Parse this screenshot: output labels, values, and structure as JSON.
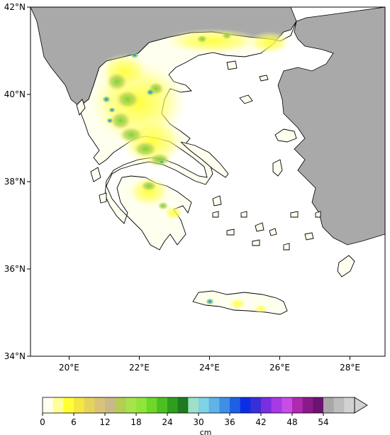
{
  "map": {
    "y_ticks": [
      {
        "value": 42,
        "label": "42°N"
      },
      {
        "value": 40,
        "label": "40°N"
      },
      {
        "value": 38,
        "label": "38°N"
      },
      {
        "value": 36,
        "label": "36°N"
      },
      {
        "value": 34,
        "label": "34°N"
      }
    ],
    "x_ticks": [
      {
        "value": 20,
        "label": "20°E"
      },
      {
        "value": 22,
        "label": "22°E"
      },
      {
        "value": 24,
        "label": "24°E"
      },
      {
        "value": 26,
        "label": "26°E"
      },
      {
        "value": 28,
        "label": "28°E"
      }
    ],
    "lon_range": [
      18.9,
      29.0
    ],
    "lat_range": [
      34.0,
      42.0
    ],
    "sea_color": "#ffffff",
    "foreign_land_color": "#a9a9a9",
    "coastline_color": "#000000"
  },
  "colorbar": {
    "unit": "cm",
    "range": [
      0,
      60
    ],
    "ticks": [
      {
        "value": 0,
        "label": "0"
      },
      {
        "value": 6,
        "label": "6"
      },
      {
        "value": 12,
        "label": "12"
      },
      {
        "value": 18,
        "label": "18"
      },
      {
        "value": 24,
        "label": "24"
      },
      {
        "value": 30,
        "label": "30"
      },
      {
        "value": 36,
        "label": "36"
      },
      {
        "value": 42,
        "label": "42"
      },
      {
        "value": 48,
        "label": "48"
      },
      {
        "value": 54,
        "label": "54"
      }
    ],
    "extend": "max",
    "colors": [
      "#fffff0",
      "#ffff99",
      "#ffff33",
      "#f5e642",
      "#e6d35c",
      "#d9c27a",
      "#c8b98a",
      "#b5cc55",
      "#a6e34d",
      "#8fe639",
      "#6fd62a",
      "#4cbf22",
      "#2e9e1f",
      "#1f7a1f",
      "#9ee0c8",
      "#7fd1e6",
      "#5fb3e6",
      "#3f8fe6",
      "#1f5fe6",
      "#0a2ee6",
      "#3a2ed6",
      "#7a2ee0",
      "#a63ae6",
      "#c84ce6",
      "#b02ab0",
      "#8a1a8a",
      "#6a1470",
      "#a8a8a8",
      "#bdbdbd",
      "#d2d2d2"
    ]
  },
  "chart_data": {
    "type": "heatmap",
    "xlabel": "",
    "ylabel": "",
    "x_axis_ticks": [
      "20°E",
      "22°E",
      "24°E",
      "26°E",
      "28°E"
    ],
    "y_axis_ticks": [
      "42°N",
      "40°N",
      "38°N",
      "36°N",
      "34°N"
    ],
    "xlim": [
      18.9,
      29.0
    ],
    "ylim": [
      34.0,
      42.0
    ],
    "colorbar_unit": "cm",
    "colorbar_range": [
      0,
      60
    ],
    "hotspots": [
      {
        "lon": 21.1,
        "lat": 40.3,
        "value": 36
      },
      {
        "lon": 21.3,
        "lat": 39.9,
        "value": 36
      },
      {
        "lon": 21.2,
        "lat": 39.6,
        "value": 33
      },
      {
        "lon": 21.5,
        "lat": 39.2,
        "value": 24
      },
      {
        "lon": 22.0,
        "lat": 38.9,
        "value": 20
      },
      {
        "lon": 22.3,
        "lat": 38.7,
        "value": 22
      },
      {
        "lon": 22.2,
        "lat": 40.1,
        "value": 30
      },
      {
        "lon": 21.9,
        "lat": 41.1,
        "value": 30
      },
      {
        "lon": 21.6,
        "lat": 40.7,
        "value": 16
      },
      {
        "lon": 23.5,
        "lat": 41.4,
        "value": 14
      },
      {
        "lon": 24.4,
        "lat": 41.5,
        "value": 14
      },
      {
        "lon": 22.2,
        "lat": 38.0,
        "value": 14
      },
      {
        "lon": 24.0,
        "lat": 35.3,
        "value": 30
      },
      {
        "lon": 24.8,
        "lat": 35.2,
        "value": 10
      }
    ]
  }
}
